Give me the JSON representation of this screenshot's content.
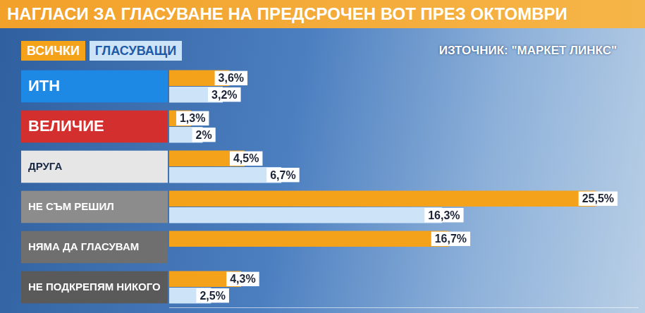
{
  "chart_data": {
    "type": "bar",
    "title": "НАГЛАСИ ЗА ГЛАСУВАНЕ НА ПРЕДСРОЧЕН ВОТ ПРЕЗ ОКТОМВРИ",
    "annotation": "ИЗТОЧНИК: \"МАРКЕТ ЛИНКС\"",
    "orientation": "horizontal",
    "categories": [
      "ИТН",
      "ВЕЛИЧИЕ",
      "ДРУГА",
      "НЕ СЪМ РЕШИЛ",
      "НЯМА ДА ГЛАСУВАМ",
      "НЕ ПОДКРЕПЯМ НИКОГО"
    ],
    "series": [
      {
        "name": "ВСИЧКИ",
        "color": "#f5a21b",
        "values": [
          3.6,
          1.3,
          4.5,
          25.5,
          16.7,
          4.3
        ],
        "value_labels": [
          "3,6%",
          "1,3%",
          "4,5%",
          "25,5%",
          "16,7%",
          "4,3%"
        ]
      },
      {
        "name": "ГЛАСУВАЩИ",
        "color": "#cde4f8",
        "values": [
          3.2,
          2,
          6.7,
          16.3,
          null,
          2.5
        ],
        "value_labels": [
          "3,2%",
          "2%",
          "6,7%",
          "16,3%",
          null,
          "2,5%"
        ]
      }
    ],
    "xlim": [
      0,
      28
    ],
    "tick_labels": false,
    "grid": false,
    "legend": "top-left",
    "data_labels": true
  }
}
